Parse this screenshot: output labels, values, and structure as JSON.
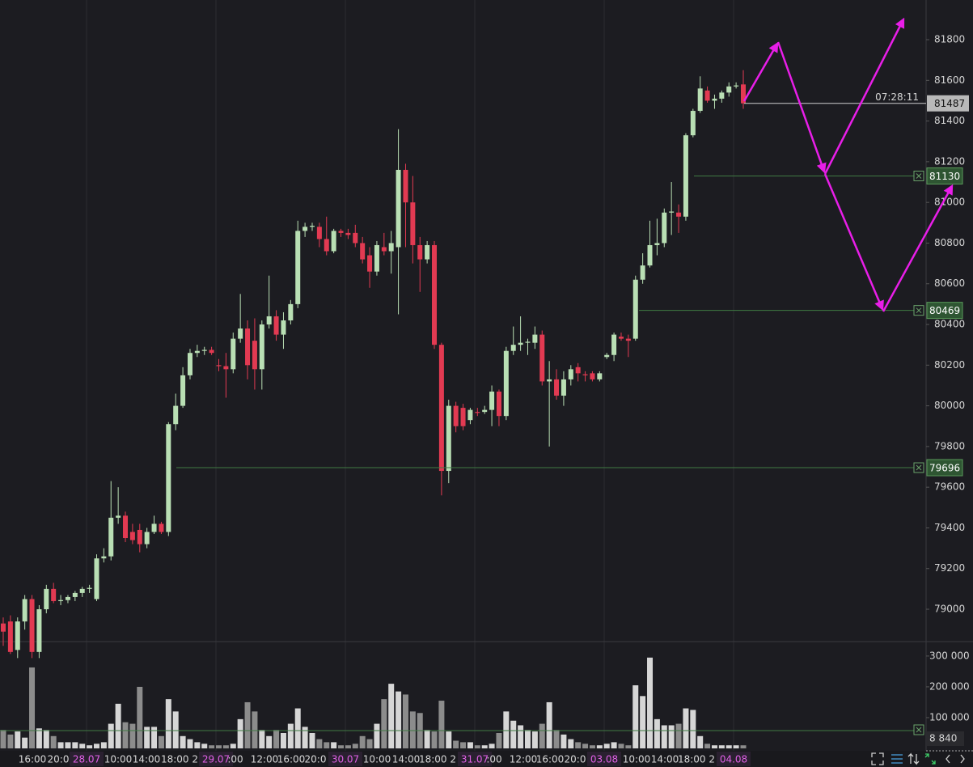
{
  "chart_data": [
    {
      "type": "candlestick",
      "open": [
        78930,
        78940,
        78800,
        78940,
        79050,
        78790,
        79000,
        79100,
        79040,
        79045,
        79060,
        79080,
        79100,
        79050,
        79250,
        79260,
        79450,
        79460,
        79380,
        79390,
        79320,
        79380,
        79420,
        79380,
        79910,
        80000,
        80150,
        80260,
        80270,
        80275,
        80200,
        80195,
        80180,
        80330,
        80380,
        80320,
        80180,
        80400,
        80440,
        80350,
        80420,
        80500,
        80860,
        80880,
        80880,
        80820,
        80760,
        80860,
        80850,
        80850,
        80800,
        80740,
        80660,
        80780,
        80760,
        80780,
        81160,
        81000,
        80790,
        80720,
        80790,
        80300,
        79680,
        80000,
        79990,
        79930,
        79970,
        79970,
        79980,
        80070,
        79950,
        80270,
        80300,
        80310,
        80310,
        80350,
        80120,
        80130,
        80050,
        80130,
        80190,
        80155,
        80160,
        80130,
        80240,
        80250,
        80340,
        80330,
        80330,
        80620,
        80690,
        80790,
        80800,
        80950,
        80950,
        80930,
        81330,
        81450,
        81550,
        81500,
        81510,
        81540,
        81570,
        81580
      ],
      "high": [
        78960,
        78970,
        78960,
        79070,
        79070,
        79020,
        79120,
        79130,
        79070,
        79070,
        79090,
        79110,
        79120,
        79270,
        79300,
        79630,
        79600,
        79480,
        79420,
        79420,
        79400,
        79460,
        79430,
        79920,
        80060,
        80190,
        80280,
        80300,
        80290,
        80290,
        80230,
        80260,
        80360,
        80550,
        80420,
        80430,
        80420,
        80640,
        80470,
        80460,
        80520,
        80910,
        80900,
        80900,
        80900,
        80930,
        80870,
        80870,
        80870,
        80890,
        80830,
        80780,
        80810,
        80850,
        80860,
        81360,
        81190,
        81130,
        80830,
        80810,
        80810,
        80310,
        80030,
        80020,
        80010,
        79990,
        79990,
        80000,
        80100,
        80080,
        80290,
        80390,
        80440,
        80330,
        80390,
        80370,
        80220,
        80180,
        80170,
        80200,
        80210,
        80170,
        80170,
        80170,
        80260,
        80360,
        80360,
        80350,
        80640,
        80750,
        80910,
        80920,
        80970,
        81100,
        80990,
        81340,
        81460,
        81620,
        81570,
        81530,
        81550,
        81590,
        81590,
        81650
      ],
      "low": [
        78820,
        78780,
        78760,
        78900,
        78760,
        78760,
        78980,
        79030,
        79020,
        79030,
        79040,
        79060,
        79080,
        79040,
        79230,
        79240,
        79420,
        79330,
        79320,
        79280,
        79300,
        79370,
        79370,
        79360,
        79880,
        79990,
        80130,
        80240,
        80250,
        80250,
        80170,
        80040,
        80160,
        80310,
        80130,
        80080,
        80080,
        80380,
        80320,
        80280,
        80400,
        80480,
        80830,
        80860,
        80780,
        80740,
        80750,
        80830,
        80820,
        80780,
        80700,
        80580,
        80640,
        80740,
        80650,
        80450,
        80780,
        80700,
        80560,
        80700,
        80280,
        79560,
        79620,
        79870,
        79880,
        79910,
        79950,
        79960,
        79900,
        79900,
        79930,
        80250,
        80270,
        80250,
        80280,
        80100,
        79800,
        80030,
        80000,
        80100,
        80120,
        80120,
        80120,
        80120,
        80230,
        80220,
        80320,
        80240,
        80320,
        80600,
        80680,
        80740,
        80780,
        80840,
        80850,
        80910,
        81320,
        81440,
        81490,
        81460,
        81490,
        81520,
        81560,
        81460
      ],
      "close": [
        78890,
        78790,
        78940,
        79050,
        78790,
        79000,
        79100,
        79040,
        79045,
        79060,
        79080,
        79100,
        79105,
        79250,
        79260,
        79450,
        79460,
        79350,
        79340,
        79320,
        79380,
        79420,
        79380,
        79910,
        80000,
        80150,
        80260,
        80270,
        80275,
        80260,
        80195,
        80180,
        80330,
        80380,
        80200,
        80180,
        80400,
        80440,
        80350,
        80420,
        80500,
        80860,
        80880,
        80885,
        80820,
        80760,
        80860,
        80850,
        80840,
        80800,
        80720,
        80660,
        80790,
        80760,
        80800,
        81160,
        81000,
        80790,
        80720,
        80790,
        80300,
        79680,
        80000,
        79900,
        79900,
        79980,
        79965,
        79980,
        80070,
        79950,
        80270,
        80300,
        80310,
        80315,
        80350,
        80120,
        80130,
        80050,
        80130,
        80180,
        80160,
        80150,
        80130,
        80160,
        80250,
        80350,
        80330,
        80320,
        80620,
        80690,
        80790,
        80800,
        80950,
        80955,
        80930,
        81330,
        81450,
        81560,
        81500,
        81510,
        81540,
        81570,
        81575,
        81487
      ],
      "up_color": "#b9dfb4",
      "down_color": "#e23a52",
      "ylim": [
        78841,
        81995
      ],
      "yticks": [
        79000,
        79200,
        79400,
        79600,
        79800,
        80000,
        80200,
        80400,
        80600,
        80800,
        81000,
        81200,
        81400,
        81600,
        81800
      ],
      "price_levels": [
        81130,
        80469,
        79696
      ],
      "last_price": 81487,
      "countdown": "07:28:11",
      "time_labels": [
        "16:00",
        "20:0",
        "28.07",
        "10:00",
        "14:00",
        "18:00 2",
        "29.07",
        ":00",
        "12:00",
        "16:00",
        "20:0",
        "30.07",
        "10:00",
        "14:00",
        "18:00 2",
        "31.07",
        ":00",
        "12:00",
        "16:00",
        "20:0",
        "03.08",
        "10:00",
        "14:00",
        "18:00 2",
        "04.08"
      ]
    },
    {
      "type": "bar",
      "values": [
        60000,
        45000,
        55000,
        35000,
        263000,
        65000,
        60000,
        40000,
        20000,
        20000,
        20000,
        15000,
        10000,
        15000,
        20000,
        80000,
        145000,
        85000,
        80000,
        200000,
        70000,
        70000,
        40000,
        160000,
        120000,
        40000,
        30000,
        20000,
        15000,
        10000,
        10000,
        10000,
        15000,
        95000,
        150000,
        120000,
        60000,
        40000,
        60000,
        50000,
        80000,
        130000,
        70000,
        50000,
        30000,
        20000,
        20000,
        10000,
        10000,
        15000,
        40000,
        30000,
        80000,
        160000,
        210000,
        185000,
        175000,
        120000,
        115000,
        60000,
        55000,
        155000,
        55000,
        25000,
        20000,
        20000,
        10000,
        10000,
        15000,
        50000,
        120000,
        90000,
        75000,
        60000,
        55000,
        80000,
        150000,
        60000,
        45000,
        30000,
        20000,
        15000,
        10000,
        10000,
        15000,
        20000,
        15000,
        10000,
        205000,
        170000,
        295000,
        95000,
        75000,
        75000,
        80000,
        130000,
        125000,
        40000,
        15000,
        10000,
        10000,
        10000,
        10000,
        10000
      ],
      "up_color": "#d6d6d6",
      "down_color": "#8c8c8c",
      "ylim": [
        0,
        347000
      ],
      "yticks": [
        {
          "value": 100000,
          "label": "100 000"
        },
        {
          "value": 200000,
          "label": "200 000"
        },
        {
          "value": 300000,
          "label": "300 000"
        }
      ],
      "level_label": "8 840"
    }
  ]
}
